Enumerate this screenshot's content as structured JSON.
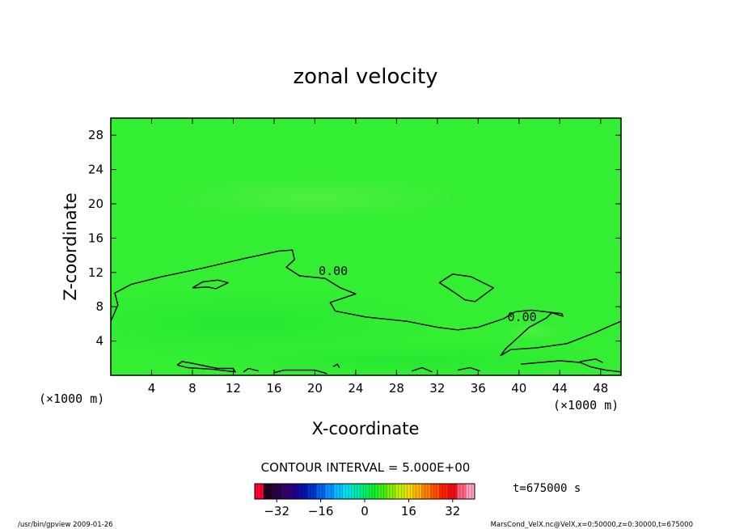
{
  "chart_data": {
    "type": "heatmap",
    "title": "zonal velocity",
    "xlabel": "X-coordinate",
    "ylabel": "Z-coordinate",
    "x_unit_label": "(×1000 m)",
    "y_unit_label": "(×1000 m)",
    "xlim": [
      0,
      50
    ],
    "ylim": [
      0,
      30
    ],
    "x_ticks": [
      4,
      8,
      12,
      16,
      20,
      24,
      28,
      32,
      36,
      40,
      44,
      48
    ],
    "y_ticks": [
      4,
      8,
      12,
      16,
      20,
      24,
      28
    ],
    "field_color": "#33ee33",
    "contour_interval_text": "CONTOUR INTERVAL = 5.000E+00",
    "contour_labels": [
      {
        "text": "0.00",
        "x": 21.8,
        "y": 11.7
      },
      {
        "text": "0.00",
        "x": 40.3,
        "y": 6.3
      }
    ],
    "contours": [
      [
        [
          0,
          6.3
        ],
        [
          0.7,
          8.2
        ],
        [
          0.4,
          9.6
        ],
        [
          2,
          10.6
        ],
        [
          5,
          11.5
        ],
        [
          9,
          12.5
        ],
        [
          13,
          13.6
        ],
        [
          16.5,
          14.5
        ],
        [
          17.8,
          14.6
        ],
        [
          18,
          13.5
        ],
        [
          17.2,
          12.6
        ],
        [
          18.5,
          11.6
        ],
        [
          21,
          11.3
        ],
        [
          22.5,
          10.2
        ],
        [
          24,
          9.5
        ],
        [
          21.5,
          8.5
        ],
        [
          22,
          7.5
        ],
        [
          25,
          6.8
        ],
        [
          29,
          6.3
        ],
        [
          32,
          5.6
        ],
        [
          34,
          5.3
        ],
        [
          36,
          5.6
        ],
        [
          38.5,
          6.6
        ],
        [
          39.6,
          7.4
        ],
        [
          41.2,
          7.6
        ],
        [
          42.7,
          7.4
        ],
        [
          44.2,
          7.2
        ],
        [
          44.3,
          6.9
        ],
        [
          43.2,
          7.3
        ],
        [
          42.7,
          6.7
        ],
        [
          41,
          5.6
        ],
        [
          39.8,
          4.3
        ],
        [
          38.7,
          3.1
        ],
        [
          38.2,
          2.3
        ],
        [
          39.2,
          3.0
        ],
        [
          41.7,
          3.2
        ],
        [
          44.7,
          3.7
        ],
        [
          47.5,
          5.0
        ],
        [
          49,
          5.8
        ],
        [
          50,
          6.3
        ]
      ],
      [
        [
          8,
          10.2
        ],
        [
          9,
          10.9
        ],
        [
          10.5,
          11.1
        ],
        [
          11.5,
          10.8
        ],
        [
          10.3,
          10.1
        ],
        [
          9.5,
          10.3
        ],
        [
          8,
          10.2
        ]
      ],
      [
        [
          32.2,
          10.8
        ],
        [
          33.5,
          11.8
        ],
        [
          35.3,
          11.5
        ],
        [
          37.5,
          10.2
        ],
        [
          35.7,
          8.6
        ],
        [
          34.7,
          8.8
        ],
        [
          33.5,
          9.8
        ],
        [
          32.2,
          10.8
        ]
      ],
      [
        [
          6.5,
          1.2
        ],
        [
          7,
          1.6
        ],
        [
          8,
          1.4
        ],
        [
          9.6,
          1.0
        ],
        [
          10.5,
          0.8
        ],
        [
          12,
          0.8
        ],
        [
          12.2,
          0.4
        ],
        [
          10,
          0.7
        ],
        [
          7.5,
          0.9
        ],
        [
          6.5,
          1.2
        ]
      ],
      [
        [
          13,
          0.4
        ],
        [
          13.5,
          0.8
        ],
        [
          14.5,
          0.5
        ]
      ],
      [
        [
          16,
          0.3
        ],
        [
          17,
          0.6
        ],
        [
          20,
          0.6
        ],
        [
          21.2,
          0.2
        ]
      ],
      [
        [
          21.8,
          1.0
        ],
        [
          22.2,
          1.3
        ],
        [
          22.4,
          0.9
        ]
      ],
      [
        [
          40.2,
          1.3
        ],
        [
          44,
          1.7
        ],
        [
          46,
          1.5
        ],
        [
          47,
          1.0
        ],
        [
          48.5,
          0.6
        ],
        [
          50,
          0.4
        ]
      ],
      [
        [
          46,
          1.6
        ],
        [
          47.5,
          1.9
        ],
        [
          48.2,
          1.5
        ]
      ],
      [
        [
          29.5,
          0.5
        ],
        [
          30.5,
          0.9
        ],
        [
          31.5,
          0.4
        ]
      ],
      [
        [
          34,
          0.6
        ],
        [
          35.2,
          0.9
        ],
        [
          36.2,
          0.5
        ]
      ]
    ],
    "colorbar": {
      "min": -40,
      "max": 40,
      "ticks": [
        -32,
        -16,
        0,
        16,
        32
      ],
      "colors": [
        "#ff0033",
        "#220022",
        "#2a0044",
        "#33006a",
        "#22008a",
        "#0a10aa",
        "#0030cc",
        "#0060ee",
        "#0090ff",
        "#00c0ff",
        "#00e0e8",
        "#00e8b0",
        "#00ee70",
        "#10ee30",
        "#40ee10",
        "#80ee00",
        "#c0ee00",
        "#eedd00",
        "#ffb000",
        "#ff8000",
        "#ff5000",
        "#ff2000",
        "#ee1010",
        "#ff6080",
        "#ffa0c0"
      ]
    },
    "time_label": "t=675000 s"
  },
  "footer": {
    "left": "/usr/bin/gpview  2009-01-26",
    "right": "MarsCond_VelX.nc@VelX,x=0:50000,z=0:30000,t=675000"
  }
}
